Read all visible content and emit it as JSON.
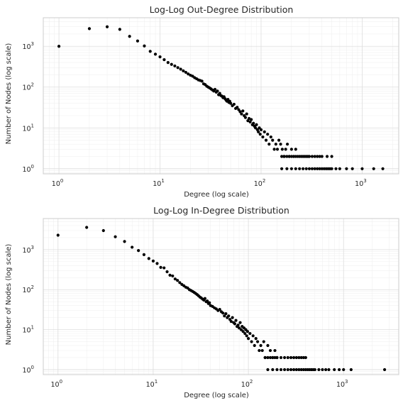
{
  "chart_data": [
    {
      "type": "scatter",
      "title": "Log-Log Out-Degree Distribution",
      "xlabel": "Degree (log scale)",
      "ylabel": "Number of Nodes (log scale)",
      "xscale": "log",
      "yscale": "log",
      "xlim": [
        0.7,
        2300
      ],
      "ylim": [
        0.75,
        5000
      ],
      "grid": true,
      "x_ticks": [
        {
          "value": 1,
          "base": "10",
          "exp": "0"
        },
        {
          "value": 10,
          "base": "10",
          "exp": "1"
        },
        {
          "value": 100,
          "base": "10",
          "exp": "2"
        },
        {
          "value": 1000,
          "base": "10",
          "exp": "3"
        }
      ],
      "y_ticks": [
        {
          "value": 1,
          "base": "10",
          "exp": "0"
        },
        {
          "value": 10,
          "base": "10",
          "exp": "1"
        },
        {
          "value": 100,
          "base": "10",
          "exp": "2"
        },
        {
          "value": 1000,
          "base": "10",
          "exp": "3"
        }
      ],
      "x": [
        1,
        2,
        3,
        4,
        5,
        6,
        7,
        8,
        9,
        10,
        11,
        12,
        13,
        14,
        15,
        16,
        17,
        18,
        19,
        20,
        21,
        22,
        23,
        24,
        25,
        26,
        27,
        28,
        29,
        30,
        31,
        32,
        33,
        34,
        35,
        36,
        37,
        38,
        39,
        40,
        41,
        42,
        43,
        44,
        45,
        46,
        47,
        48,
        49,
        50,
        52,
        54,
        56,
        58,
        60,
        62,
        64,
        66,
        68,
        70,
        72,
        74,
        76,
        78,
        80,
        82,
        84,
        86,
        88,
        90,
        92,
        94,
        96,
        98,
        100,
        104,
        108,
        112,
        116,
        120,
        125,
        130,
        135,
        140,
        145,
        150,
        156,
        162,
        168,
        175,
        182,
        190,
        200,
        210,
        220,
        160,
        170,
        180,
        190,
        200,
        210,
        220,
        230,
        240,
        250,
        260,
        270,
        280,
        290,
        300,
        320,
        340,
        360,
        380,
        400,
        450,
        500,
        160,
        180,
        200,
        220,
        240,
        260,
        280,
        300,
        320,
        340,
        360,
        380,
        400,
        420,
        440,
        460,
        480,
        500,
        550,
        600,
        700,
        800,
        1000,
        1300,
        1600
      ],
      "y": [
        1000,
        2700,
        3000,
        2600,
        1750,
        1350,
        1020,
        750,
        640,
        550,
        470,
        400,
        360,
        330,
        300,
        275,
        250,
        230,
        210,
        195,
        185,
        170,
        160,
        150,
        145,
        140,
        120,
        115,
        105,
        100,
        95,
        90,
        85,
        80,
        88,
        75,
        80,
        65,
        70,
        62,
        60,
        55,
        58,
        52,
        48,
        45,
        50,
        42,
        45,
        40,
        35,
        38,
        30,
        32,
        28,
        25,
        22,
        26,
        20,
        18,
        22,
        15,
        17,
        14,
        16,
        12,
        13,
        11,
        10,
        12,
        9,
        8,
        10,
        7,
        9,
        6,
        8,
        5,
        7,
        4,
        6,
        5,
        3,
        4,
        3,
        5,
        4,
        3,
        2,
        3,
        4,
        2,
        3,
        2,
        3,
        2,
        2,
        2,
        2,
        2,
        2,
        2,
        2,
        2,
        2,
        2,
        2,
        2,
        2,
        2,
        2,
        2,
        2,
        2,
        2,
        2,
        2,
        1,
        1,
        1,
        1,
        1,
        1,
        1,
        1,
        1,
        1,
        1,
        1,
        1,
        1,
        1,
        1,
        1,
        1,
        1,
        1,
        1,
        1,
        1,
        1,
        1
      ]
    },
    {
      "type": "scatter",
      "title": "Log-Log In-Degree Distribution",
      "xlabel": "Degree (log scale)",
      "ylabel": "Number of Nodes (log scale)",
      "xscale": "log",
      "yscale": "log",
      "xlim": [
        0.7,
        3800
      ],
      "ylim": [
        0.75,
        6000
      ],
      "grid": true,
      "x_ticks": [
        {
          "value": 1,
          "base": "10",
          "exp": "0"
        },
        {
          "value": 10,
          "base": "10",
          "exp": "1"
        },
        {
          "value": 100,
          "base": "10",
          "exp": "2"
        },
        {
          "value": 1000,
          "base": "10",
          "exp": "3"
        }
      ],
      "y_ticks": [
        {
          "value": 1,
          "base": "10",
          "exp": "0"
        },
        {
          "value": 10,
          "base": "10",
          "exp": "1"
        },
        {
          "value": 100,
          "base": "10",
          "exp": "2"
        },
        {
          "value": 1000,
          "base": "10",
          "exp": "3"
        }
      ],
      "x": [
        1,
        2,
        3,
        4,
        5,
        6,
        7,
        8,
        9,
        10,
        11,
        12,
        13,
        14,
        15,
        16,
        17,
        18,
        19,
        20,
        21,
        22,
        23,
        24,
        25,
        26,
        27,
        28,
        29,
        30,
        31,
        32,
        33,
        34,
        35,
        36,
        37,
        38,
        39,
        40,
        42,
        44,
        46,
        48,
        50,
        52,
        54,
        56,
        58,
        60,
        62,
        64,
        66,
        68,
        70,
        72,
        74,
        76,
        78,
        80,
        82,
        84,
        86,
        88,
        90,
        92,
        94,
        96,
        98,
        100,
        104,
        108,
        112,
        116,
        120,
        125,
        130,
        135,
        140,
        145,
        150,
        160,
        170,
        180,
        190,
        200,
        150,
        160,
        170,
        180,
        190,
        200,
        220,
        240,
        260,
        280,
        300,
        320,
        340,
        360,
        380,
        400,
        160,
        180,
        200,
        220,
        240,
        260,
        280,
        300,
        320,
        340,
        360,
        380,
        400,
        420,
        440,
        460,
        480,
        500,
        550,
        600,
        650,
        700,
        800,
        900,
        1000,
        1200,
        2700
      ],
      "y": [
        2300,
        3600,
        3000,
        2100,
        1600,
        1150,
        950,
        750,
        600,
        520,
        450,
        360,
        350,
        280,
        230,
        220,
        185,
        170,
        150,
        135,
        125,
        115,
        110,
        100,
        95,
        90,
        85,
        80,
        75,
        70,
        65,
        62,
        58,
        55,
        60,
        50,
        52,
        45,
        47,
        40,
        38,
        35,
        33,
        30,
        32,
        28,
        26,
        22,
        25,
        20,
        22,
        18,
        16,
        20,
        15,
        14,
        17,
        12,
        13,
        11,
        15,
        10,
        12,
        9,
        11,
        8,
        10,
        7,
        9,
        6,
        8,
        5,
        7,
        4,
        6,
        5,
        3,
        4,
        3,
        5,
        2,
        4,
        3,
        2,
        3,
        2,
        2,
        2,
        2,
        2,
        2,
        2,
        2,
        2,
        2,
        2,
        2,
        2,
        2,
        2,
        2,
        2,
        1,
        1,
        1,
        1,
        1,
        1,
        1,
        1,
        1,
        1,
        1,
        1,
        1,
        1,
        1,
        1,
        1,
        1,
        1,
        1,
        1,
        1,
        1,
        1,
        1,
        1,
        1
      ]
    }
  ]
}
